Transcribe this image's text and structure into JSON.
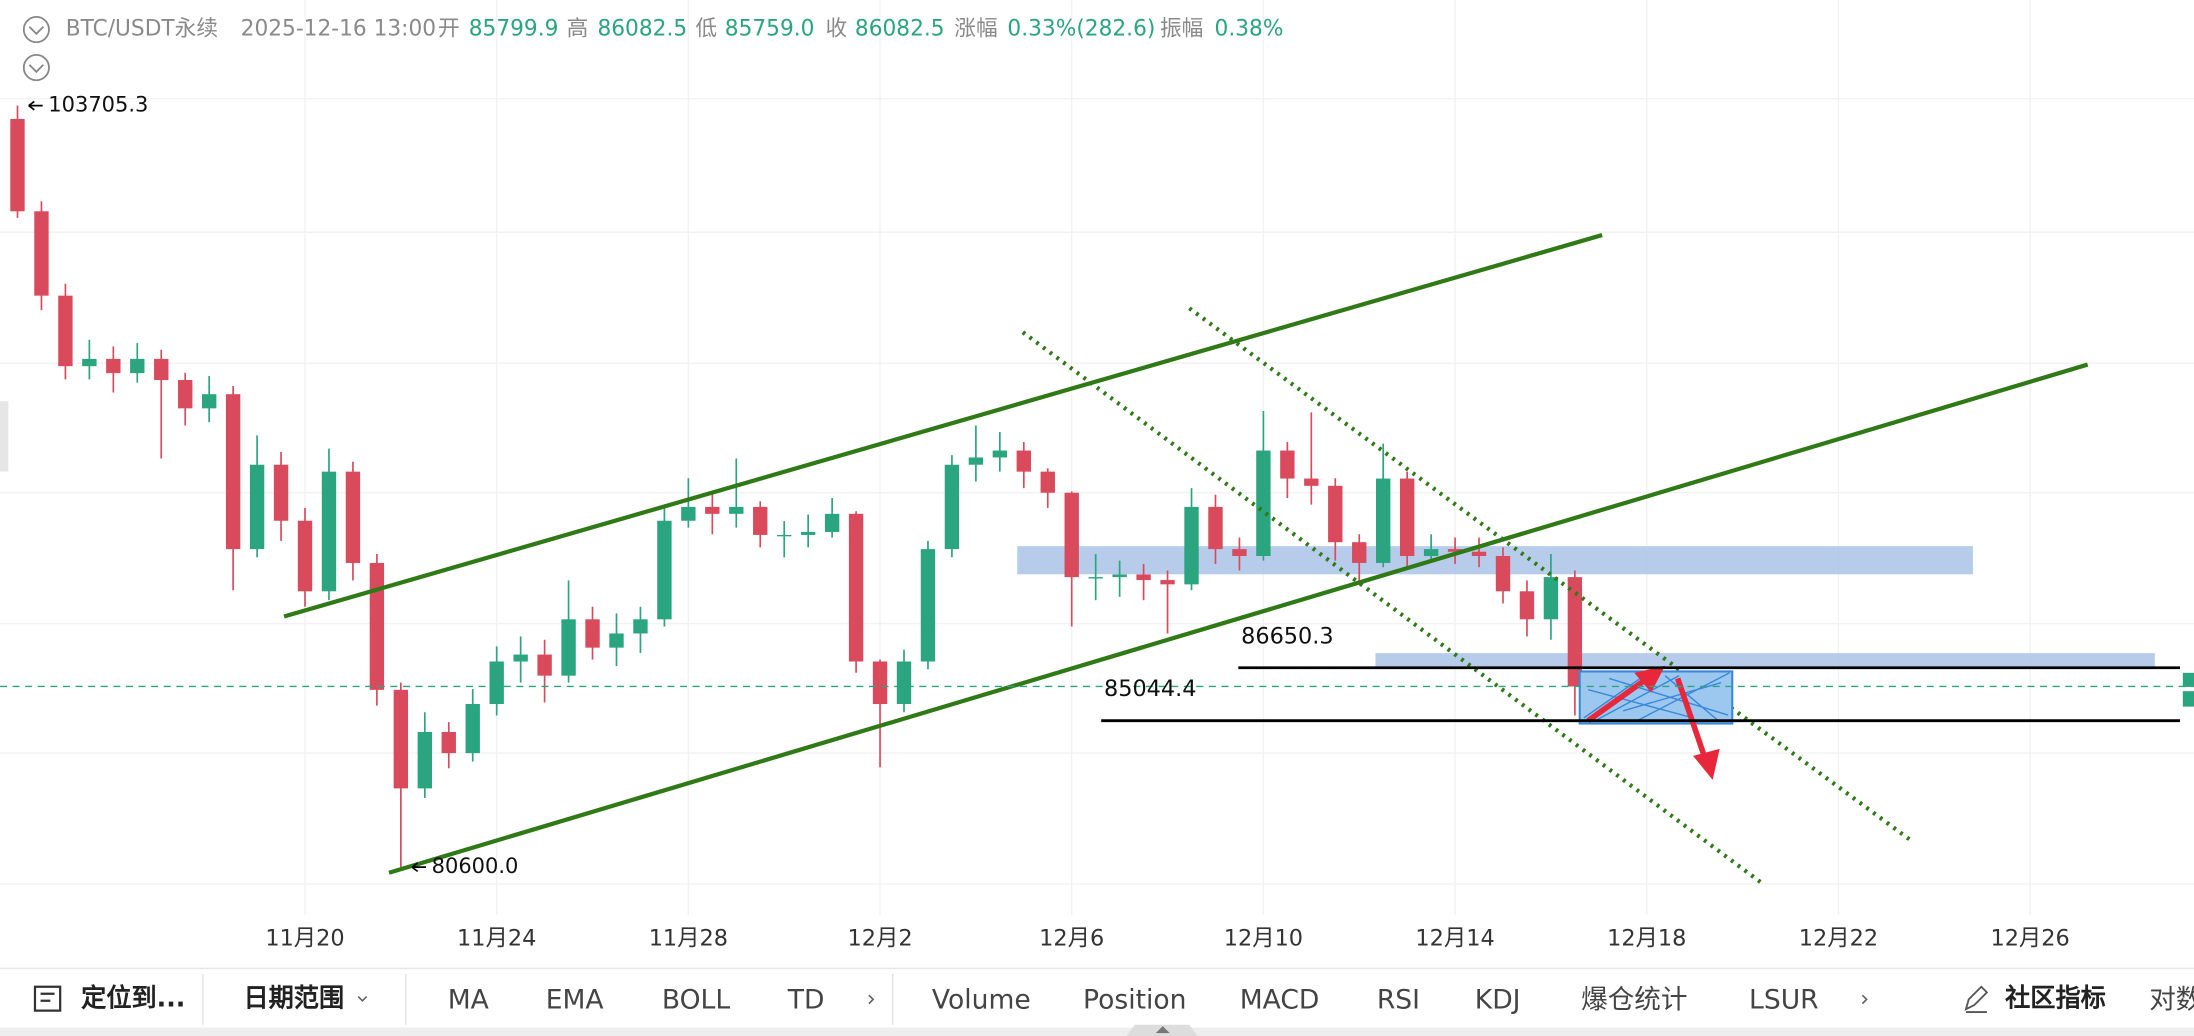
{
  "header": {
    "symbol": "BTC/USDT永续",
    "time": "2025-12-16 13:00",
    "open_label": "开",
    "open": "85799.9",
    "high_label": "高",
    "high": "86082.5",
    "low_label": "低",
    "low": "85759.0",
    "close_label": "收",
    "close": "86082.5",
    "change_label": "涨幅",
    "change": "0.33%(282.6)",
    "amplitude_label": "振幅",
    "amplitude": "0.38%"
  },
  "chart_data": {
    "type": "candlestick",
    "up_color": "#2aa57f",
    "down_color": "#d94a5c",
    "xlim": [
      -6.365,
      39.42
    ],
    "ylim": [
      79150,
      106910
    ],
    "xticks": [
      {
        "value": 0,
        "label": "11月20"
      },
      {
        "value": 4,
        "label": "11月24"
      },
      {
        "value": 8,
        "label": "11月28"
      },
      {
        "value": 12,
        "label": "12月2"
      },
      {
        "value": 16,
        "label": "12月6"
      },
      {
        "value": 20,
        "label": "12月10"
      },
      {
        "value": 24,
        "label": "12月14"
      },
      {
        "value": 28,
        "label": "12月18"
      },
      {
        "value": 32,
        "label": "12月22"
      },
      {
        "value": 36,
        "label": "12月26"
      }
    ],
    "x": [
      -6,
      -5.5,
      -5,
      -4.5,
      -4,
      -3.5,
      -3,
      -2.5,
      -2,
      -1.5,
      -1,
      -0.5,
      0,
      0.5,
      1,
      1.5,
      2,
      2.5,
      3,
      3.5,
      4,
      4.5,
      5,
      5.5,
      6,
      6.5,
      7,
      7.5,
      8,
      8.5,
      9,
      9.5,
      10,
      10.5,
      11,
      11.5,
      12,
      12.5,
      13,
      13.5,
      14,
      14.5,
      15,
      15.5,
      16,
      16.5,
      17,
      17.5,
      18,
      18.5,
      19,
      19.5,
      20,
      20.5,
      21,
      21.5,
      22,
      22.5,
      23,
      23.5,
      24,
      24.5,
      25,
      25.5,
      26,
      26.5
    ],
    "open": [
      103300,
      100500,
      97940,
      95800,
      96020,
      95590,
      96020,
      95380,
      94520,
      94950,
      90250,
      92810,
      91110,
      88970,
      92600,
      89830,
      85980,
      82990,
      84700,
      84060,
      85550,
      86840,
      87050,
      86410,
      88120,
      87260,
      87690,
      88120,
      91110,
      91530,
      91320,
      91530,
      90680,
      90680,
      90770,
      91320,
      86840,
      85550,
      86840,
      90250,
      92810,
      93030,
      93240,
      92600,
      91960,
      89400,
      89400,
      89480,
      89310,
      89180,
      91530,
      90250,
      90040,
      93240,
      92390,
      92170,
      90460,
      89830,
      92390,
      90040,
      90250,
      90170,
      90040,
      88970,
      88120,
      89400
    ],
    "high": [
      103705.3,
      100800,
      98300,
      96600,
      96400,
      96500,
      96300,
      95600,
      95500,
      95200,
      93700,
      93200,
      91500,
      93300,
      92900,
      90100,
      86200,
      85300,
      85000,
      86000,
      87300,
      87600,
      87500,
      89300,
      88500,
      88300,
      88500,
      91500,
      92400,
      92000,
      93000,
      91700,
      91100,
      91300,
      91800,
      91400,
      86900,
      87200,
      90500,
      93100,
      94000,
      93800,
      93500,
      92700,
      92000,
      90100,
      89900,
      89800,
      89600,
      92100,
      91900,
      90600,
      94440,
      93500,
      94400,
      92400,
      90700,
      93450,
      92600,
      90700,
      90600,
      90600,
      90300,
      89300,
      90100,
      89600
    ],
    "low": [
      100300,
      97500,
      95400,
      95400,
      95000,
      95300,
      93000,
      94000,
      94100,
      89000,
      90000,
      90500,
      88500,
      88700,
      89300,
      85500,
      80600,
      82700,
      83600,
      83800,
      85200,
      86200,
      85600,
      86200,
      86900,
      86700,
      87100,
      87900,
      90900,
      90700,
      90900,
      90300,
      90000,
      90300,
      90600,
      86500,
      83630,
      85300,
      86600,
      90000,
      92300,
      92600,
      92100,
      91500,
      87900,
      88700,
      88800,
      88700,
      87690,
      89000,
      89800,
      89600,
      89900,
      91800,
      91600,
      89900,
      89200,
      89700,
      89700,
      89900,
      89800,
      89700,
      88600,
      87600,
      87500,
      85200
    ],
    "close": [
      100500,
      97940,
      95800,
      96020,
      95590,
      96020,
      95380,
      94520,
      94950,
      90250,
      92810,
      91110,
      88970,
      92600,
      89830,
      85980,
      82990,
      84700,
      84060,
      85550,
      86840,
      87050,
      86410,
      88120,
      87260,
      87690,
      88120,
      91110,
      91530,
      91320,
      91530,
      90680,
      90680,
      90770,
      91320,
      86840,
      85550,
      86840,
      90250,
      92810,
      93030,
      93240,
      92600,
      91960,
      89400,
      89400,
      89480,
      89310,
      89180,
      91530,
      90250,
      90040,
      93240,
      92390,
      92170,
      90460,
      89830,
      92390,
      90040,
      90250,
      90170,
      90040,
      88970,
      88120,
      89400,
      86082.5
    ],
    "extremes": [
      {
        "value": 103705.3,
        "label": "103705.3"
      },
      {
        "value": 80600,
        "label": "80600.0"
      }
    ],
    "levels": [
      86650.3,
      85044.4
    ]
  },
  "toolbar": {
    "locate": "定位到...",
    "date_range": "日期范围",
    "indicators": [
      "MA",
      "EMA",
      "BOLL",
      "TD"
    ],
    "subcharts": [
      "Volume",
      "Position",
      "MACD",
      "RSI",
      "KDJ",
      "爆仓统计",
      "LSUR"
    ],
    "community": "社区指标",
    "log": "对数"
  }
}
